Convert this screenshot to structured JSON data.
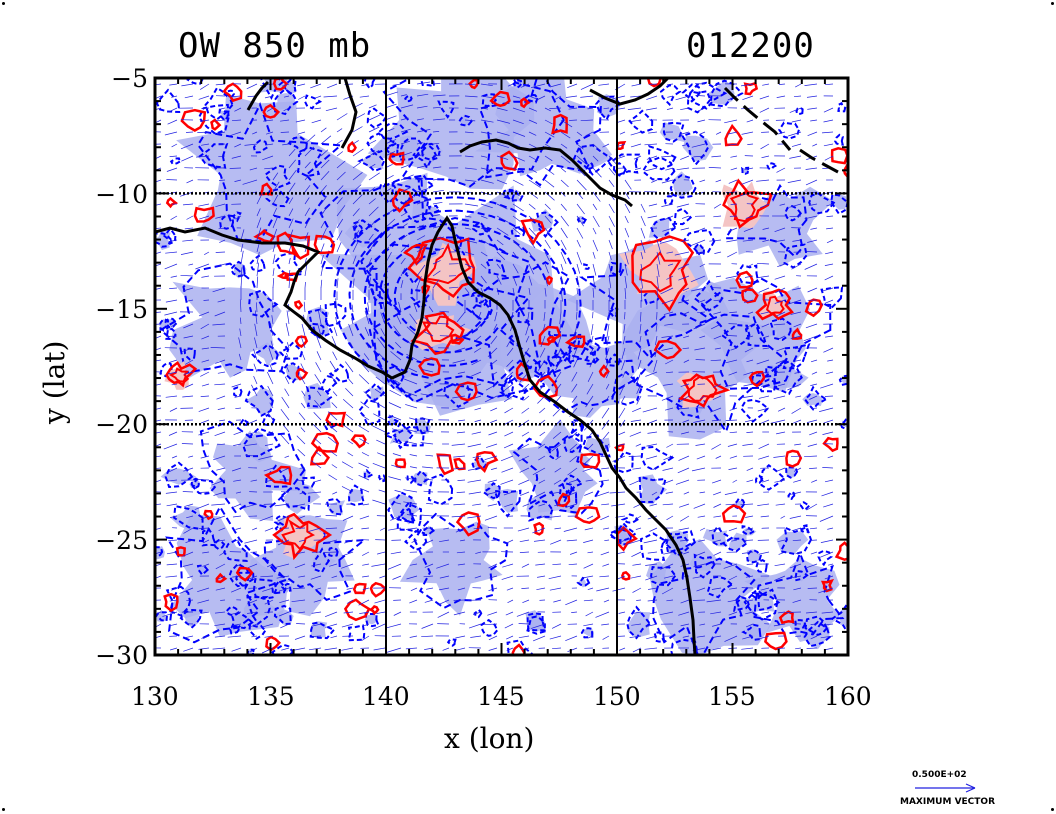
{
  "title": {
    "field": "OW 850 mb",
    "time": "012200"
  },
  "x_axis": {
    "label": "x (lon)",
    "range": [
      130,
      160
    ],
    "ticks": [
      "130",
      "135",
      "140",
      "145",
      "150",
      "155",
      "160"
    ]
  },
  "y_axis": {
    "label": "y (lat)",
    "range": [
      -30,
      -5
    ],
    "ticks": [
      "−5",
      "−10",
      "−15",
      "−20",
      "−25",
      "−30"
    ]
  },
  "grid": {
    "lon_lines": [
      140,
      150
    ],
    "lat_lines": [
      -10,
      -20
    ]
  },
  "legend": {
    "vector_value": "0.500E+02",
    "vector_label": "MAXIMUM VECTOR"
  },
  "colors": {
    "coast": "#000000",
    "positive_contour": "#ff0000",
    "positive_fill": "#f4c4c4",
    "negative_contour": "#0000ff",
    "negative_fill": "#aab0f0",
    "vector": "#2020e0"
  }
}
